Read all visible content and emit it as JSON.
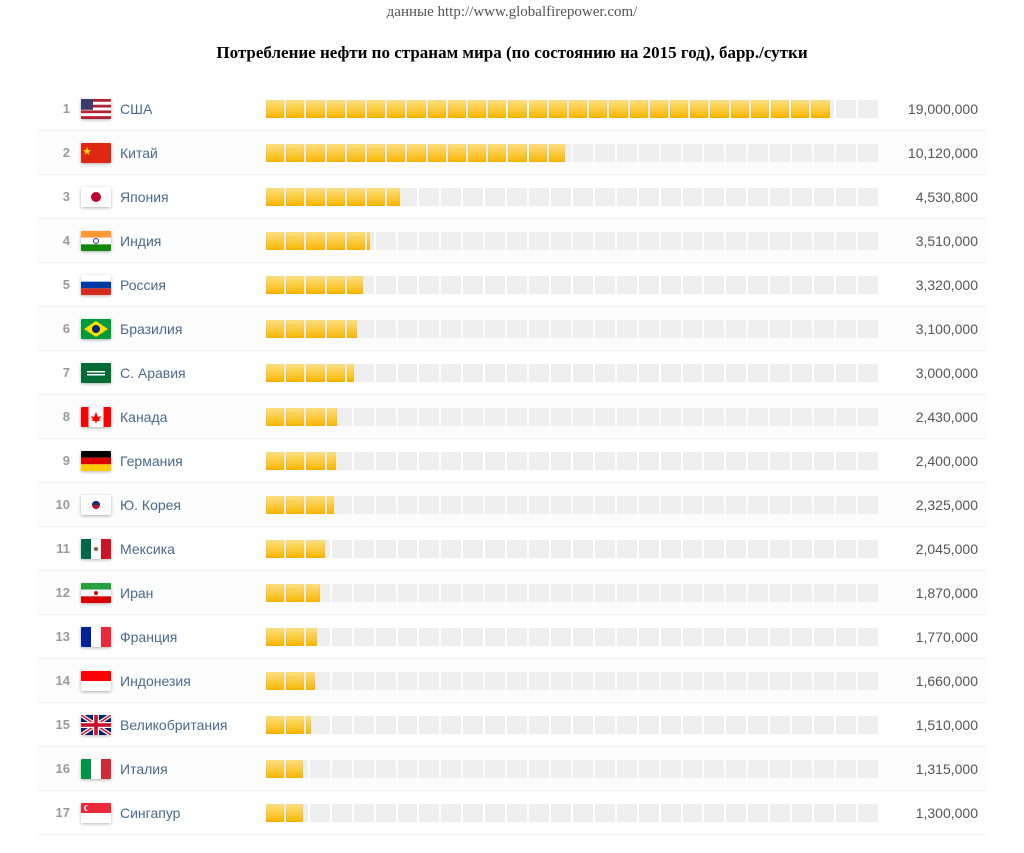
{
  "source_line": "данные http://www.globalfirepower.com/",
  "title": "Потребление нефти по странам мира (по состоянию на 2015 год), барр./сутки",
  "chart": {
    "type": "bar",
    "segments": 28,
    "max_value": 19000000,
    "colors": {
      "fill": "#f7b500",
      "fill_highlight": "#ffd34d",
      "empty": "#eeeeee",
      "row_alt_bg": "#fcfcfc",
      "row_border": "#f0f0f0",
      "rank_text": "#9a9a9a",
      "country_text": "#4a6a8a",
      "value_text": "#555555",
      "title_text": "#000000",
      "source_text": "#555555",
      "background": "#ffffff"
    },
    "font_sizes": {
      "source": 15,
      "title": 17,
      "rank": 13,
      "country": 14,
      "value": 14
    }
  },
  "countries": [
    {
      "rank": "1",
      "name": "США",
      "value": 19000000,
      "value_label": "19,000,000",
      "flag": "usa"
    },
    {
      "rank": "2",
      "name": "Китай",
      "value": 10120000,
      "value_label": "10,120,000",
      "flag": "china"
    },
    {
      "rank": "3",
      "name": "Япония",
      "value": 4530800,
      "value_label": "4,530,800",
      "flag": "japan"
    },
    {
      "rank": "4",
      "name": "Индия",
      "value": 3510000,
      "value_label": "3,510,000",
      "flag": "india"
    },
    {
      "rank": "5",
      "name": "Россия",
      "value": 3320000,
      "value_label": "3,320,000",
      "flag": "russia"
    },
    {
      "rank": "6",
      "name": "Бразилия",
      "value": 3100000,
      "value_label": "3,100,000",
      "flag": "brazil"
    },
    {
      "rank": "7",
      "name": "С. Аравия",
      "value": 3000000,
      "value_label": "3,000,000",
      "flag": "saudi"
    },
    {
      "rank": "8",
      "name": "Канада",
      "value": 2430000,
      "value_label": "2,430,000",
      "flag": "canada"
    },
    {
      "rank": "9",
      "name": "Германия",
      "value": 2400000,
      "value_label": "2,400,000",
      "flag": "germany"
    },
    {
      "rank": "10",
      "name": "Ю. Корея",
      "value": 2325000,
      "value_label": "2,325,000",
      "flag": "korea"
    },
    {
      "rank": "11",
      "name": "Мексика",
      "value": 2045000,
      "value_label": "2,045,000",
      "flag": "mexico"
    },
    {
      "rank": "12",
      "name": "Иран",
      "value": 1870000,
      "value_label": "1,870,000",
      "flag": "iran"
    },
    {
      "rank": "13",
      "name": "Франция",
      "value": 1770000,
      "value_label": "1,770,000",
      "flag": "france"
    },
    {
      "rank": "14",
      "name": "Индонезия",
      "value": 1660000,
      "value_label": "1,660,000",
      "flag": "indonesia"
    },
    {
      "rank": "15",
      "name": "Великобритания",
      "value": 1510000,
      "value_label": "1,510,000",
      "flag": "uk"
    },
    {
      "rank": "16",
      "name": "Италия",
      "value": 1315000,
      "value_label": "1,315,000",
      "flag": "italy"
    },
    {
      "rank": "17",
      "name": "Сингапур",
      "value": 1300000,
      "value_label": "1,300,000",
      "flag": "singapore"
    }
  ],
  "flags": {
    "usa": {
      "type": "stripes",
      "stripes": [
        "#b22234",
        "#ffffff",
        "#b22234",
        "#ffffff",
        "#b22234",
        "#ffffff",
        "#b22234"
      ],
      "canton": "#3c3b6e"
    },
    "china": {
      "type": "solid",
      "bg": "#de2910",
      "star": "#ffde00"
    },
    "japan": {
      "type": "solid",
      "bg": "#ffffff",
      "circle": "#bc002d"
    },
    "india": {
      "type": "tri_h",
      "bands": [
        "#ff9933",
        "#ffffff",
        "#138808"
      ],
      "circle": "#000088"
    },
    "russia": {
      "type": "tri_h",
      "bands": [
        "#ffffff",
        "#0039a6",
        "#d52b1e"
      ]
    },
    "brazil": {
      "type": "solid",
      "bg": "#009b3a",
      "diamond": "#fedf00",
      "circle": "#002776"
    },
    "saudi": {
      "type": "solid",
      "bg": "#006c35",
      "text": "#ffffff"
    },
    "canada": {
      "type": "canada",
      "side": "#ff0000",
      "center": "#ffffff",
      "leaf": "#ff0000"
    },
    "germany": {
      "type": "tri_h",
      "bands": [
        "#000000",
        "#dd0000",
        "#ffce00"
      ]
    },
    "korea": {
      "type": "solid",
      "bg": "#ffffff",
      "yin": "#c60c30",
      "yang": "#003478"
    },
    "mexico": {
      "type": "tri_v",
      "bands": [
        "#006847",
        "#ffffff",
        "#ce1126"
      ],
      "emblem": "#8a5a2b"
    },
    "iran": {
      "type": "tri_h",
      "bands": [
        "#239f40",
        "#ffffff",
        "#da0000"
      ],
      "emblem": "#da0000"
    },
    "france": {
      "type": "tri_v",
      "bands": [
        "#002395",
        "#ffffff",
        "#ed2939"
      ]
    },
    "indonesia": {
      "type": "bi_h",
      "bands": [
        "#ff0000",
        "#ffffff"
      ]
    },
    "uk": {
      "type": "uk",
      "bg": "#012169",
      "white": "#ffffff",
      "red": "#c8102e"
    },
    "italy": {
      "type": "tri_v",
      "bands": [
        "#009246",
        "#ffffff",
        "#ce2b37"
      ]
    },
    "singapore": {
      "type": "bi_h",
      "bands": [
        "#ed2939",
        "#ffffff"
      ],
      "moon": "#ffffff"
    }
  }
}
